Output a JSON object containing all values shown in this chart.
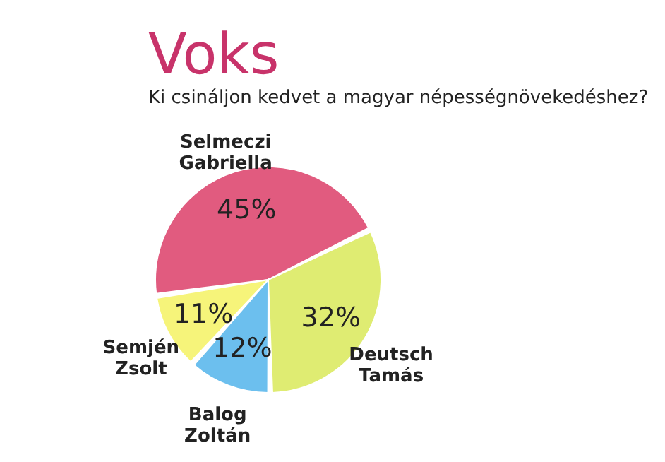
{
  "chart_data": {
    "type": "pie",
    "title": "Voks",
    "subtitle": "Ki csináljon kedvet a magyar népességnövekedéshez?",
    "categories": [
      "Selmeczi Gabriella",
      "Deutsch Tamás",
      "Balog Zoltán",
      "Semjén Zsolt"
    ],
    "values": [
      45,
      32,
      12,
      11
    ],
    "colors": [
      "#e15b7f",
      "#dfec72",
      "#6cbfee",
      "#f6f47a"
    ],
    "value_labels": [
      "45%",
      "32%",
      "12%",
      "11%"
    ],
    "legend": false
  }
}
